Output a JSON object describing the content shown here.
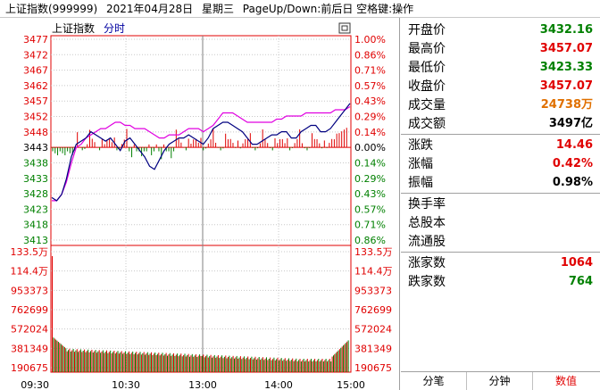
{
  "title": {
    "index_name": "上证指数(999999)",
    "date": "2021年04月28日",
    "weekday": "星期三",
    "hint": "PageUp/Down:前后日 空格键:操作"
  },
  "chart_header": {
    "name": "上证指数",
    "period": "分时"
  },
  "chart_data": {
    "type": "line",
    "base_price": 3443,
    "price_ticks": [
      "3477",
      "3472",
      "3467",
      "3462",
      "3457",
      "3452",
      "3448",
      "3443",
      "3438",
      "3433",
      "3428",
      "3423",
      "3418",
      "3413"
    ],
    "pct_ticks": [
      "1.00%",
      "0.86%",
      "0.71%",
      "0.57%",
      "0.43%",
      "0.29%",
      "0.14%",
      "0.00%",
      "0.14%",
      "0.29%",
      "0.43%",
      "0.57%",
      "0.71%",
      "0.86%"
    ],
    "volume_ticks": [
      "133.5万",
      "114.4万",
      "953373",
      "762699",
      "572024",
      "381349",
      "190675"
    ],
    "time_ticks": [
      "09:30",
      "10:30",
      "13:00",
      "14:00",
      "15:00"
    ],
    "ylim": [
      3411,
      3478
    ],
    "series": [
      {
        "values": [
          3427,
          3426,
          3428,
          3433,
          3440,
          3444,
          3445,
          3446,
          3448,
          3447,
          3446,
          3445,
          3446,
          3444,
          3442,
          3445,
          3446,
          3444,
          3442,
          3440,
          3437,
          3436,
          3439,
          3442,
          3444,
          3445,
          3446,
          3446,
          3447,
          3446,
          3445,
          3444,
          3446,
          3449,
          3450,
          3451,
          3451,
          3450,
          3449,
          3448,
          3446,
          3444,
          3444,
          3445,
          3446,
          3447,
          3447,
          3448,
          3448,
          3446,
          3446,
          3448,
          3449,
          3450,
          3450,
          3448,
          3448,
          3449,
          3451,
          3453,
          3455,
          3457
        ]
      },
      {
        "values": [
          3426,
          3426,
          3428,
          3432,
          3438,
          3443,
          3444,
          3446,
          3447,
          3448,
          3449,
          3449,
          3450,
          3451,
          3451,
          3450,
          3450,
          3449,
          3449,
          3449,
          3448,
          3447,
          3446,
          3446,
          3447,
          3447,
          3447,
          3448,
          3449,
          3449,
          3449,
          3448,
          3449,
          3450,
          3452,
          3454,
          3454,
          3454,
          3453,
          3452,
          3451,
          3451,
          3451,
          3451,
          3451,
          3451,
          3452,
          3452,
          3453,
          3453,
          3453,
          3453,
          3454,
          3454,
          3454,
          3454,
          3454,
          3454,
          3455,
          3455,
          3455,
          3456
        ]
      }
    ]
  },
  "info": {
    "open_label": "开盘价",
    "open": "3432.16",
    "high_label": "最高价",
    "high": "3457.07",
    "low_label": "最低价",
    "low": "3423.33",
    "close_label": "收盘价",
    "close": "3457.07",
    "volume_label": "成交量",
    "volume": "24738万",
    "amount_label": "成交额",
    "amount": "3497亿",
    "change_label": "涨跌",
    "change": "14.46",
    "change_pct_label": "涨幅",
    "change_pct": "0.42%",
    "amplitude_label": "振幅",
    "amplitude": "0.98%",
    "turnover_label": "换手率",
    "total_shares_label": "总股本",
    "float_shares_label": "流通股",
    "up_count_label": "涨家数",
    "up_count": "1064",
    "down_count_label": "跌家数",
    "down_count": "764"
  },
  "tabs": [
    "分笔",
    "分钟",
    "数值"
  ],
  "colors": {
    "up": "#e00000",
    "down": "#008000",
    "price_line": "#000080",
    "avg_line": "#e000e0",
    "grid": "#c8c8c8",
    "tab_active": "#e00000"
  }
}
